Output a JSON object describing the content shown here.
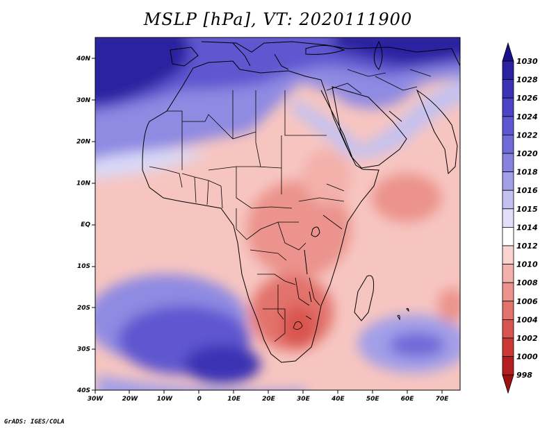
{
  "title": "MSLP [hPa], VT: 2020111900",
  "credit": "GrADS: IGES/COLA",
  "axes": {
    "x_labels": [
      "30W",
      "20W",
      "10W",
      "0",
      "10E",
      "20E",
      "30E",
      "40E",
      "50E",
      "60E",
      "70E"
    ],
    "y_labels": [
      "40N",
      "30N",
      "20N",
      "10N",
      "EQ",
      "10S",
      "20S",
      "30S",
      "40S"
    ]
  },
  "colorbar": {
    "levels": [
      "1030",
      "1028",
      "1026",
      "1024",
      "1022",
      "1020",
      "1018",
      "1016",
      "1015",
      "1014",
      "1012",
      "1010",
      "1008",
      "1006",
      "1004",
      "1002",
      "1000",
      "998"
    ],
    "colors": [
      "#1a0f8c",
      "#2b22a0",
      "#3b33b4",
      "#4c44c4",
      "#5e57d0",
      "#7069d8",
      "#8781e0",
      "#a29fe8",
      "#c3c1f0",
      "#e1e0f8",
      "#ffffff",
      "#f9d3d0",
      "#f3b0aa",
      "#eb938c",
      "#e2726c",
      "#d95450",
      "#cc3835",
      "#b51e1e",
      "#a01010"
    ]
  }
}
